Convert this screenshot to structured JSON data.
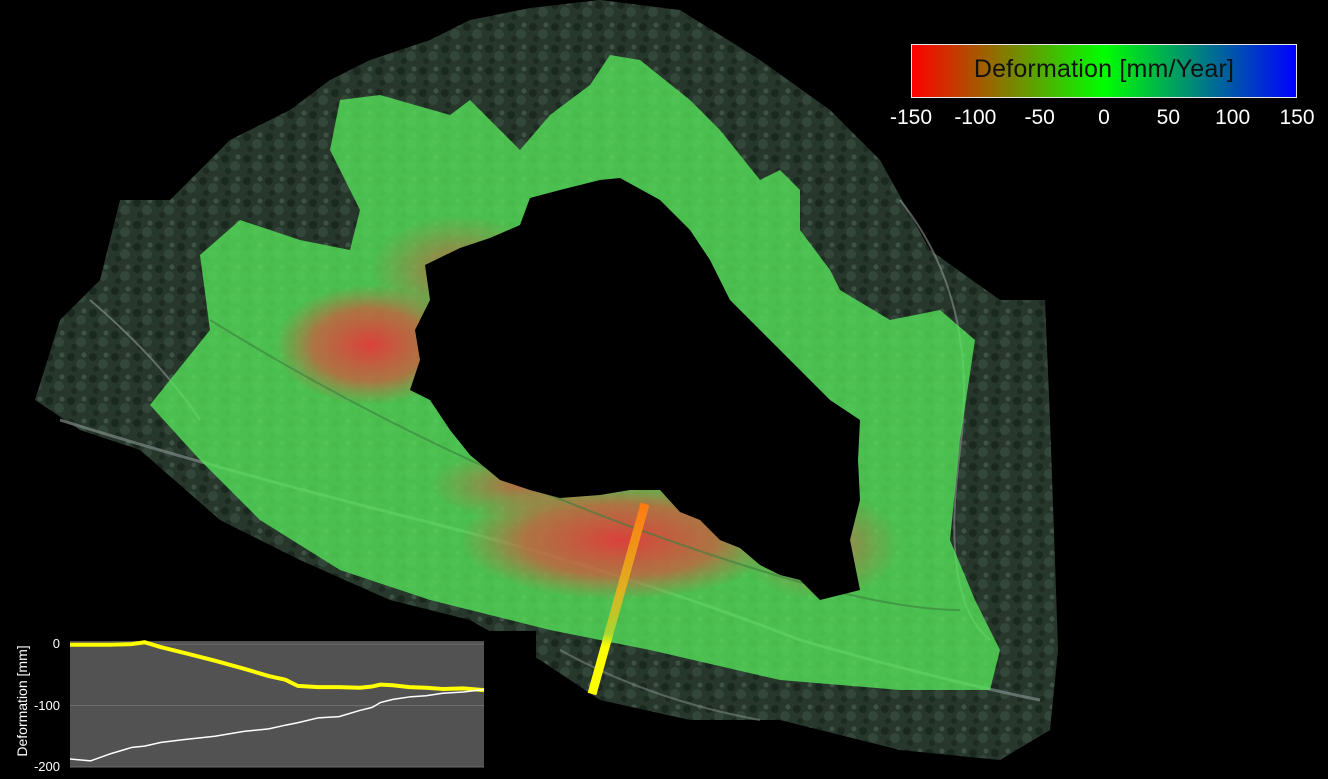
{
  "legend": {
    "title": "Deformation [mm/Year]",
    "ticks": [
      "-150",
      "-100",
      "-50",
      "0",
      "50",
      "100",
      "150"
    ],
    "tick_values": [
      -150,
      -100,
      -50,
      0,
      50,
      100,
      150
    ],
    "gradient": [
      "#ff0000",
      "#00ff00",
      "#0000ff"
    ]
  },
  "colors": {
    "stable": "#56e65a",
    "subsiding": "#e23a3a",
    "profile_line": "#ffff00",
    "profile_secondary": "#ffffff",
    "plot_background": "#525252"
  },
  "chart_data": {
    "type": "line",
    "ylabel": "Deformation [mm]",
    "xlabel": "",
    "ylim": [
      -200,
      5
    ],
    "yticks": [
      0,
      -100,
      -200
    ],
    "x": [
      0,
      5,
      10,
      15,
      18,
      22,
      28,
      35,
      42,
      48,
      52,
      55,
      60,
      65,
      70,
      73,
      75,
      78,
      82,
      86,
      90,
      95,
      100
    ],
    "series": [
      {
        "values": [
          -1,
          -1,
          -1,
          0,
          3,
          -5,
          -15,
          -27,
          -40,
          -52,
          -58,
          -68,
          -70,
          -70,
          -71,
          -69,
          -66,
          -67,
          -70,
          -71,
          -73,
          -72,
          -75
        ]
      },
      {
        "values": [
          -187,
          -190,
          -178,
          -168,
          -166,
          -160,
          -155,
          -150,
          -142,
          -138,
          -132,
          -128,
          -120,
          -118,
          -108,
          -103,
          -95,
          -90,
          -86,
          -84,
          -80,
          -78,
          -74
        ]
      }
    ]
  }
}
